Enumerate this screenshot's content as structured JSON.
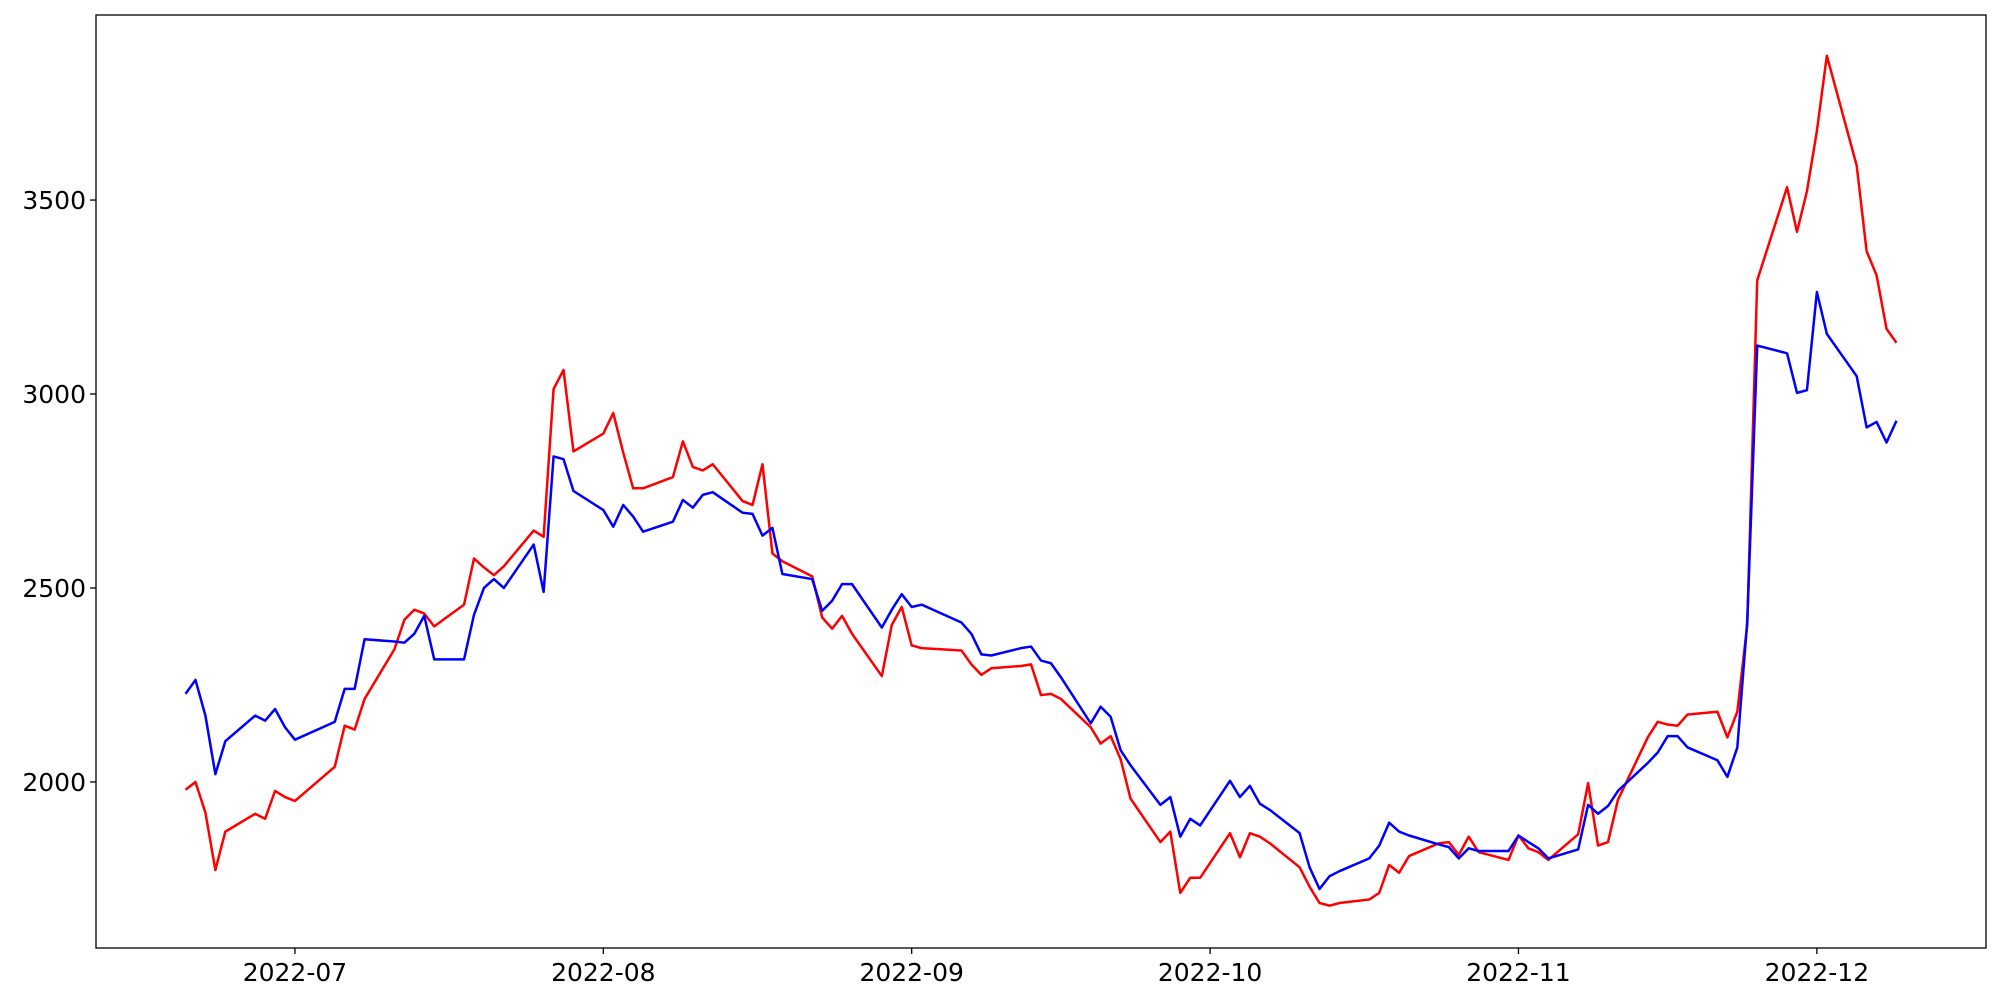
{
  "chart_data": {
    "type": "line",
    "x": [
      "2022-06-20",
      "2022-06-21",
      "2022-06-22",
      "2022-06-23",
      "2022-06-24",
      "2022-06-27",
      "2022-06-28",
      "2022-06-29",
      "2022-06-30",
      "2022-07-01",
      "2022-07-05",
      "2022-07-06",
      "2022-07-07",
      "2022-07-08",
      "2022-07-11",
      "2022-07-12",
      "2022-07-13",
      "2022-07-14",
      "2022-07-15",
      "2022-07-18",
      "2022-07-19",
      "2022-07-20",
      "2022-07-21",
      "2022-07-22",
      "2022-07-25",
      "2022-07-26",
      "2022-07-27",
      "2022-07-28",
      "2022-07-29",
      "2022-08-01",
      "2022-08-02",
      "2022-08-03",
      "2022-08-04",
      "2022-08-05",
      "2022-08-08",
      "2022-08-09",
      "2022-08-10",
      "2022-08-11",
      "2022-08-12",
      "2022-08-15",
      "2022-08-16",
      "2022-08-17",
      "2022-08-18",
      "2022-08-19",
      "2022-08-22",
      "2022-08-23",
      "2022-08-24",
      "2022-08-25",
      "2022-08-26",
      "2022-08-29",
      "2022-08-30",
      "2022-08-31",
      "2022-09-01",
      "2022-09-02",
      "2022-09-06",
      "2022-09-07",
      "2022-09-08",
      "2022-09-09",
      "2022-09-12",
      "2022-09-13",
      "2022-09-14",
      "2022-09-15",
      "2022-09-16",
      "2022-09-19",
      "2022-09-20",
      "2022-09-21",
      "2022-09-22",
      "2022-09-23",
      "2022-09-26",
      "2022-09-27",
      "2022-09-28",
      "2022-09-29",
      "2022-09-30",
      "2022-10-03",
      "2022-10-04",
      "2022-10-05",
      "2022-10-06",
      "2022-10-07",
      "2022-10-10",
      "2022-10-11",
      "2022-10-12",
      "2022-10-13",
      "2022-10-14",
      "2022-10-17",
      "2022-10-18",
      "2022-10-19",
      "2022-10-20",
      "2022-10-21",
      "2022-10-24",
      "2022-10-25",
      "2022-10-26",
      "2022-10-27",
      "2022-10-28",
      "2022-10-31",
      "2022-11-01",
      "2022-11-02",
      "2022-11-03",
      "2022-11-04",
      "2022-11-07",
      "2022-11-08",
      "2022-11-09",
      "2022-11-10",
      "2022-11-11",
      "2022-11-14",
      "2022-11-15",
      "2022-11-16",
      "2022-11-17",
      "2022-11-18",
      "2022-11-21",
      "2022-11-22",
      "2022-11-23",
      "2022-11-24",
      "2022-11-25",
      "2022-11-28",
      "2022-11-29",
      "2022-11-30",
      "2022-12-01",
      "2022-12-02",
      "2022-12-05",
      "2022-12-06",
      "2022-12-07",
      "2022-12-08",
      "2022-12-09"
    ],
    "series": [
      {
        "color": "#ff0000",
        "values": [
          1980,
          2000,
          1921,
          1773,
          1872,
          1918,
          1905,
          1977,
          1961,
          1951,
          2039,
          2145,
          2135,
          2214,
          2342,
          2418,
          2444,
          2434,
          2401,
          2457,
          2576,
          2553,
          2533,
          2556,
          2648,
          2632,
          3013,
          3062,
          2852,
          2898,
          2951,
          2849,
          2757,
          2757,
          2786,
          2878,
          2812,
          2803,
          2819,
          2724,
          2714,
          2819,
          2589,
          2569,
          2530,
          2424,
          2395,
          2428,
          2382,
          2273,
          2405,
          2451,
          2352,
          2345,
          2339,
          2303,
          2276,
          2293,
          2299,
          2303,
          2224,
          2227,
          2214,
          2141,
          2099,
          2118,
          2059,
          1957,
          1845,
          1872,
          1714,
          1753,
          1753,
          1868,
          1806,
          1868,
          1859,
          1842,
          1780,
          1730,
          1688,
          1681,
          1688,
          1697,
          1714,
          1786,
          1766,
          1809,
          1842,
          1845,
          1812,
          1859,
          1819,
          1799,
          1862,
          1829,
          1819,
          1799,
          1865,
          1997,
          1836,
          1845,
          1954,
          2115,
          2155,
          2148,
          2145,
          2174,
          2181,
          2115,
          2181,
          2405,
          3293,
          3533,
          3418,
          3523,
          3678,
          3872,
          3589,
          3368,
          3306,
          3168,
          3132
        ]
      },
      {
        "color": "#0000ff",
        "values": [
          2227,
          2263,
          2171,
          2020,
          2105,
          2171,
          2158,
          2188,
          2141,
          2109,
          2155,
          2240,
          2240,
          2368,
          2362,
          2359,
          2382,
          2428,
          2316,
          2316,
          2431,
          2500,
          2523,
          2500,
          2612,
          2490,
          2839,
          2832,
          2750,
          2701,
          2658,
          2714,
          2684,
          2645,
          2671,
          2727,
          2707,
          2740,
          2747,
          2694,
          2691,
          2635,
          2655,
          2536,
          2523,
          2441,
          2467,
          2510,
          2510,
          2398,
          2444,
          2484,
          2451,
          2457,
          2411,
          2382,
          2329,
          2326,
          2345,
          2349,
          2313,
          2306,
          2270,
          2151,
          2194,
          2168,
          2082,
          2043,
          1941,
          1961,
          1859,
          1905,
          1888,
          2003,
          1961,
          1990,
          1944,
          1928,
          1868,
          1780,
          1724,
          1757,
          1770,
          1803,
          1836,
          1895,
          1872,
          1862,
          1839,
          1832,
          1803,
          1829,
          1822,
          1822,
          1862,
          1845,
          1829,
          1803,
          1826,
          1941,
          1918,
          1938,
          1977,
          2049,
          2076,
          2118,
          2118,
          2089,
          2056,
          2013,
          2089,
          2414,
          3125,
          3105,
          3003,
          3010,
          3263,
          3155,
          3046,
          2914,
          2928,
          2875,
          2931
        ]
      }
    ],
    "xlim": [
      "2022-06-11",
      "2022-12-18"
    ],
    "xticks": [
      {
        "value": "2022-07-01",
        "label": "2022-07"
      },
      {
        "value": "2022-08-01",
        "label": "2022-08"
      },
      {
        "value": "2022-09-01",
        "label": "2022-09"
      },
      {
        "value": "2022-10-01",
        "label": "2022-10"
      },
      {
        "value": "2022-11-01",
        "label": "2022-11"
      },
      {
        "value": "2022-12-01",
        "label": "2022-12"
      }
    ],
    "ylim": [
      1572,
      3977
    ],
    "yticks": [
      2000,
      2500,
      3000,
      3500
    ]
  }
}
